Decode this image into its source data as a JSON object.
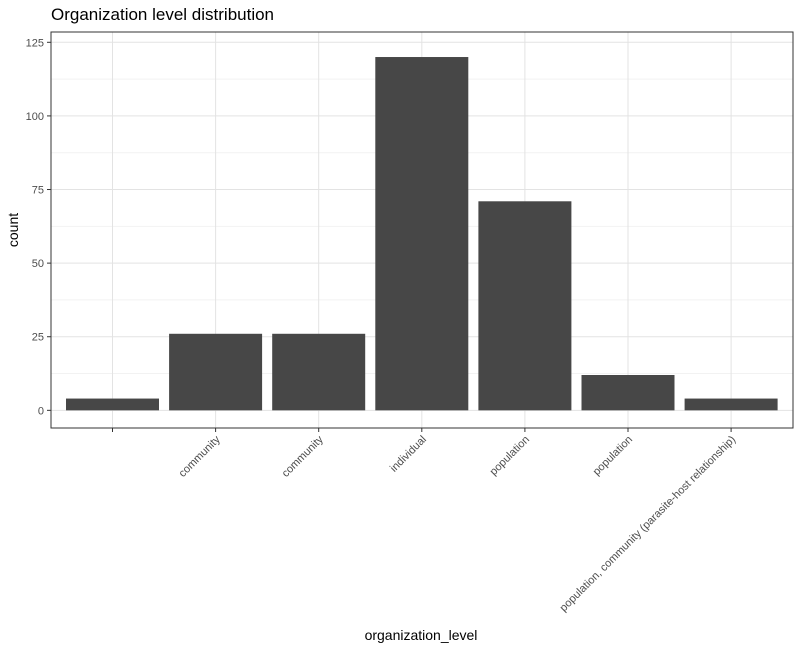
{
  "chart_data": {
    "type": "bar",
    "title": "Organization level distribution",
    "xlabel": "organization_level",
    "ylabel": "count",
    "categories": [
      "",
      "community",
      "community ",
      "individual",
      "population",
      "population ",
      "population, community (parasite-host relationship)"
    ],
    "values": [
      4,
      26,
      26,
      120,
      71,
      12,
      4
    ],
    "ylim": [
      -6,
      125
    ],
    "yticks": [
      0,
      25,
      50,
      75,
      100,
      125
    ],
    "grid": true,
    "legend": "none",
    "colors": {
      "bar": "#474747",
      "panel_border": "#333333",
      "grid_major": "#e3e3e3",
      "grid_minor": "#f2f2f2",
      "tick_label": "#4d4d4d"
    }
  }
}
